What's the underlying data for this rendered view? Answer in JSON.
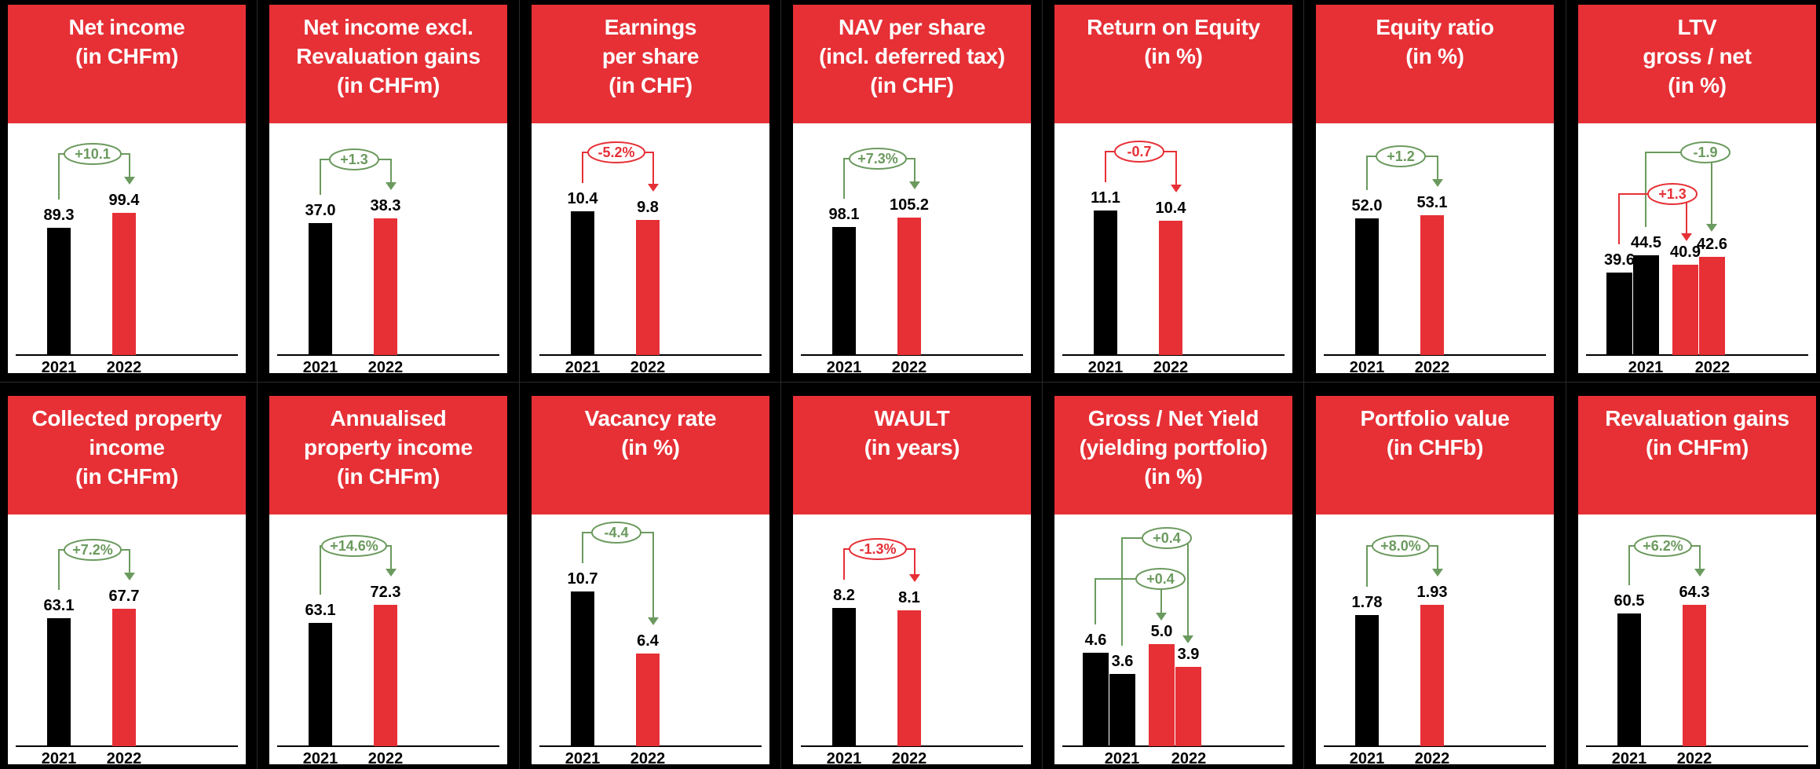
{
  "colors": {
    "accent": "#e63036",
    "black": "#000000",
    "positive": "#6b9a5e",
    "negative": "#e63036"
  },
  "chart_data": [
    {
      "type": "bar",
      "id": "net-income",
      "title": "Net income\n(in CHFm)",
      "categories": [
        "2021",
        "2022"
      ],
      "series": [
        {
          "values": [
            89.3,
            99.4
          ]
        }
      ],
      "value_labels": [
        "89.3",
        "99.4"
      ],
      "deltas": [
        {
          "label": "+10.1",
          "sentiment": "positive"
        }
      ]
    },
    {
      "type": "bar",
      "id": "net-income-excl",
      "title": "Net income excl.\nRevaluation gains\n(in CHFm)",
      "categories": [
        "2021",
        "2022"
      ],
      "series": [
        {
          "values": [
            37.0,
            38.3
          ]
        }
      ],
      "value_labels": [
        "37.0",
        "38.3"
      ],
      "deltas": [
        {
          "label": "+1.3",
          "sentiment": "positive"
        }
      ]
    },
    {
      "type": "bar",
      "id": "eps",
      "title": "Earnings\nper share\n(in CHF)",
      "categories": [
        "2021",
        "2022"
      ],
      "series": [
        {
          "values": [
            10.4,
            9.8
          ]
        }
      ],
      "value_labels": [
        "10.4",
        "9.8"
      ],
      "deltas": [
        {
          "label": "-5.2%",
          "sentiment": "negative"
        }
      ]
    },
    {
      "type": "bar",
      "id": "nav",
      "title": "NAV per share\n(incl. deferred tax)\n(in CHF)",
      "categories": [
        "2021",
        "2022"
      ],
      "series": [
        {
          "values": [
            98.1,
            105.2
          ]
        }
      ],
      "value_labels": [
        "98.1",
        "105.2"
      ],
      "deltas": [
        {
          "label": "+7.3%",
          "sentiment": "positive"
        }
      ]
    },
    {
      "type": "bar",
      "id": "roe",
      "title": "Return on Equity\n(in %)",
      "categories": [
        "2021",
        "2022"
      ],
      "series": [
        {
          "values": [
            11.1,
            10.4
          ]
        }
      ],
      "value_labels": [
        "11.1",
        "10.4"
      ],
      "deltas": [
        {
          "label": "-0.7",
          "sentiment": "negative"
        }
      ]
    },
    {
      "type": "bar",
      "id": "equity-ratio",
      "title": "Equity ratio\n(in %)",
      "categories": [
        "2021",
        "2022"
      ],
      "series": [
        {
          "values": [
            52.0,
            53.1
          ]
        }
      ],
      "value_labels": [
        "52.0",
        "53.1"
      ],
      "deltas": [
        {
          "label": "+1.2",
          "sentiment": "positive"
        }
      ]
    },
    {
      "type": "bar",
      "id": "ltv",
      "title": "LTV\ngross / net\n(in %)",
      "categories": [
        "2021",
        "2022"
      ],
      "series": [
        {
          "values": [
            39.6,
            40.9
          ]
        },
        {
          "values": [
            44.5,
            42.6
          ]
        }
      ],
      "value_labels": [
        [
          "39.6",
          "40.9"
        ],
        [
          "44.5",
          "42.6"
        ]
      ],
      "deltas": [
        {
          "label": "+1.3",
          "sentiment": "negative"
        },
        {
          "label": "-1.9",
          "sentiment": "positive"
        }
      ]
    },
    {
      "type": "bar",
      "id": "collected-income",
      "title": "Collected property\nincome\n(in CHFm)",
      "categories": [
        "2021",
        "2022"
      ],
      "series": [
        {
          "values": [
            63.1,
            67.7
          ]
        }
      ],
      "value_labels": [
        "63.1",
        "67.7"
      ],
      "deltas": [
        {
          "label": "+7.2%",
          "sentiment": "positive"
        }
      ]
    },
    {
      "type": "bar",
      "id": "annualised-income",
      "title": "Annualised\nproperty income\n(in CHFm)",
      "categories": [
        "2021",
        "2022"
      ],
      "series": [
        {
          "values": [
            63.1,
            72.3
          ]
        }
      ],
      "value_labels": [
        "63.1",
        "72.3"
      ],
      "deltas": [
        {
          "label": "+14.6%",
          "sentiment": "positive"
        }
      ]
    },
    {
      "type": "bar",
      "id": "vacancy",
      "title": "Vacancy rate\n(in %)",
      "categories": [
        "2021",
        "2022"
      ],
      "series": [
        {
          "values": [
            10.7,
            6.4
          ]
        }
      ],
      "value_labels": [
        "10.7",
        "6.4"
      ],
      "deltas": [
        {
          "label": "-4.4",
          "sentiment": "positive"
        }
      ]
    },
    {
      "type": "bar",
      "id": "wault",
      "title": "WAULT\n(in years)",
      "categories": [
        "2021",
        "2022"
      ],
      "series": [
        {
          "values": [
            8.2,
            8.1
          ]
        }
      ],
      "value_labels": [
        "8.2",
        "8.1"
      ],
      "deltas": [
        {
          "label": "-1.3%",
          "sentiment": "negative"
        }
      ]
    },
    {
      "type": "bar",
      "id": "yield",
      "title": "Gross / Net Yield\n(yielding portfolio)\n(in %)",
      "categories": [
        "2021",
        "2022"
      ],
      "series": [
        {
          "values": [
            4.6,
            5.0
          ]
        },
        {
          "values": [
            3.6,
            3.9
          ]
        }
      ],
      "value_labels": [
        [
          "4.6",
          "5.0"
        ],
        [
          "3.6",
          "3.9"
        ]
      ],
      "deltas": [
        {
          "label": "+0.4",
          "sentiment": "positive"
        },
        {
          "label": "+0.4",
          "sentiment": "positive"
        }
      ]
    },
    {
      "type": "bar",
      "id": "portfolio-value",
      "title": "Portfolio value\n(in CHFb)",
      "categories": [
        "2021",
        "2022"
      ],
      "series": [
        {
          "values": [
            1.78,
            1.93
          ]
        }
      ],
      "value_labels": [
        "1.78",
        "1.93"
      ],
      "deltas": [
        {
          "label": "+8.0%",
          "sentiment": "positive"
        }
      ]
    },
    {
      "type": "bar",
      "id": "revaluation-gains",
      "title": "Revaluation gains\n(in CHFm)",
      "categories": [
        "2021",
        "2022"
      ],
      "series": [
        {
          "values": [
            60.5,
            64.3
          ]
        }
      ],
      "value_labels": [
        "60.5",
        "64.3"
      ],
      "deltas": [
        {
          "label": "+6.2%",
          "sentiment": "positive"
        }
      ]
    }
  ]
}
